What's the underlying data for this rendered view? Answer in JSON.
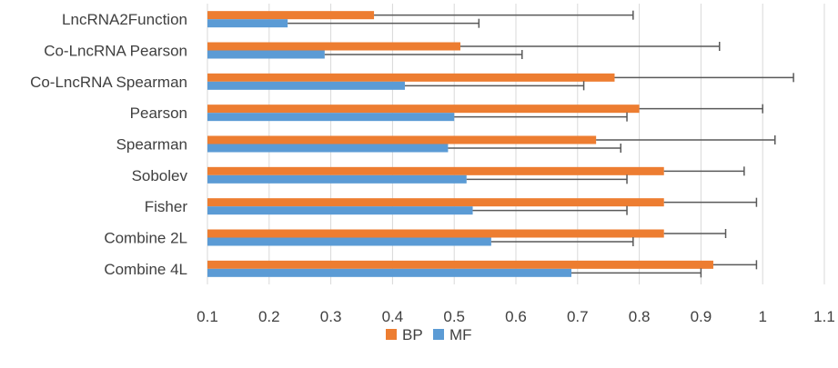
{
  "chart_data": {
    "type": "bar",
    "orientation": "horizontal",
    "categories": [
      "LncRNA2Function",
      "Co-LncRNA Pearson",
      "Co-LncRNA Spearman",
      "Pearson",
      "Spearman",
      "Sobolev",
      "Fisher",
      "Combine 2L",
      "Combine 4L"
    ],
    "series": [
      {
        "name": "BP",
        "color": "#ed7d31",
        "values": [
          0.37,
          0.51,
          0.76,
          0.8,
          0.73,
          0.84,
          0.84,
          0.84,
          0.92
        ],
        "error_upper": [
          0.79,
          0.93,
          1.05,
          1.0,
          1.02,
          0.97,
          0.99,
          0.94,
          0.99
        ]
      },
      {
        "name": "MF",
        "color": "#5b9bd5",
        "values": [
          0.23,
          0.29,
          0.42,
          0.5,
          0.49,
          0.52,
          0.53,
          0.56,
          0.69
        ],
        "error_upper": [
          0.54,
          0.61,
          0.71,
          0.78,
          0.77,
          0.78,
          0.78,
          0.79,
          0.9
        ]
      }
    ],
    "xlim": [
      0.1,
      1.1
    ],
    "xticks": [
      "0.1",
      "0.2",
      "0.3",
      "0.4",
      "0.5",
      "0.6",
      "0.7",
      "0.8",
      "0.9",
      "1",
      "1.1"
    ],
    "title": "",
    "xlabel": "",
    "ylabel": "",
    "grid": true,
    "legend": "bottom-center",
    "axis_color": "#d9d9d9",
    "errorbar_color": "#595959"
  },
  "legend": {
    "items": [
      {
        "label": "BP",
        "color": "#ed7d31"
      },
      {
        "label": "MF",
        "color": "#5b9bd5"
      }
    ]
  }
}
